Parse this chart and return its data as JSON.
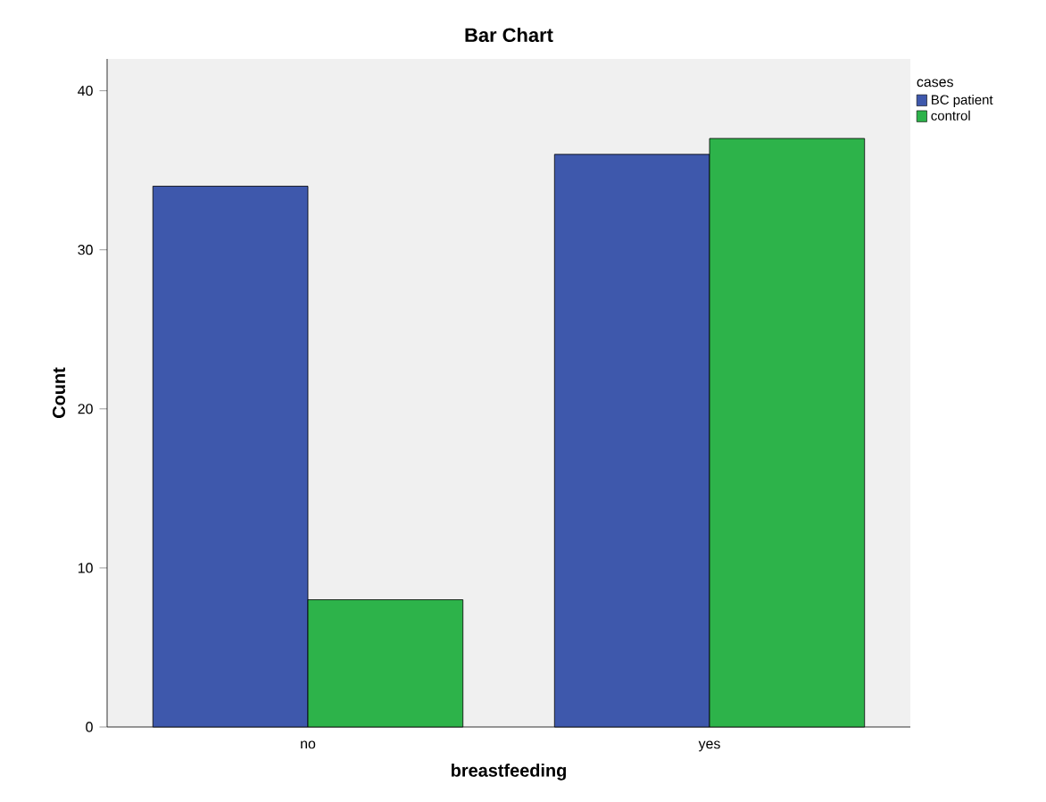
{
  "chart_data": {
    "type": "bar",
    "title": "Bar Chart",
    "xlabel": "breastfeeding",
    "ylabel": "Count",
    "legend_title": "cases",
    "categories": [
      "no",
      "yes"
    ],
    "series": [
      {
        "name": "BC patient",
        "color": "#3e58ac",
        "values": [
          34,
          36
        ]
      },
      {
        "name": "control",
        "color": "#2db34a",
        "values": [
          8,
          37
        ]
      }
    ],
    "ylim": [
      0,
      42
    ],
    "yticks": [
      0,
      10,
      20,
      30,
      40
    ],
    "legend": "top right",
    "grid": false
  }
}
